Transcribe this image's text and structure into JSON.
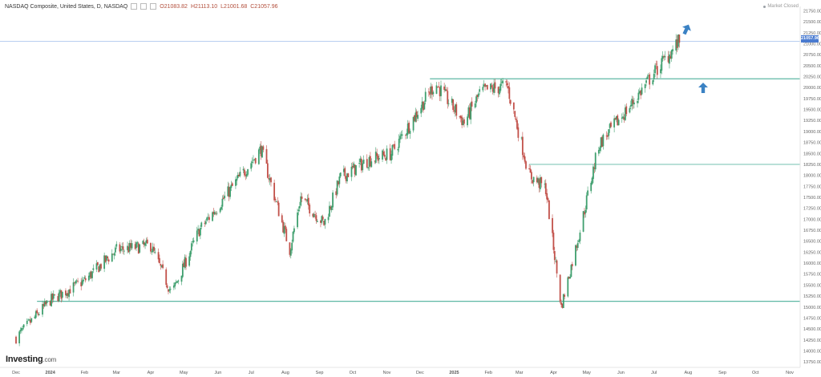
{
  "header": {
    "instrument": "NASDAQ Composite, United States, D, NASDAQ",
    "open": "O21083.82",
    "high": "H21113.10",
    "low": "L21001.68",
    "close": "C21057.96"
  },
  "status": "Market Closed",
  "logo": {
    "name": "Investing",
    "suffix": ".com"
  },
  "last_price_label": "21057.96",
  "colors": {
    "up": "#3f9f6e",
    "down": "#c2514a",
    "level_line": "#5fb8a5",
    "price_line": "#8fb0e8",
    "arrow": "#3b82c4"
  },
  "chart_data": {
    "type": "candlestick",
    "x_ticks": [
      "Dec",
      "2024",
      "Feb",
      "Mar",
      "Apr",
      "May",
      "Jun",
      "Jul",
      "Aug",
      "Sep",
      "Oct",
      "Nov",
      "Dec",
      "2025",
      "Feb",
      "Mar",
      "Apr",
      "May",
      "Jun",
      "Jul",
      "Aug",
      "Sep",
      "Oct",
      "Nov"
    ],
    "y_ticks": [
      21750,
      21500,
      21250,
      21000,
      20750,
      20500,
      20250,
      20000,
      19750,
      19500,
      19250,
      19000,
      18750,
      18500,
      18250,
      18000,
      17750,
      17500,
      17250,
      17000,
      16750,
      16500,
      16250,
      16000,
      15750,
      15500,
      15250,
      15000,
      14750,
      14500,
      14250,
      14000,
      13750
    ],
    "ylim": [
      13625,
      21850
    ],
    "horizontal_levels": [
      20200,
      18250,
      15130
    ],
    "last_price": 21057.96,
    "path_monthly": [
      {
        "date": "2023-12-01",
        "close": 14300
      },
      {
        "date": "2024-01-01",
        "close": 15150
      },
      {
        "date": "2024-02-01",
        "close": 15600
      },
      {
        "date": "2024-03-01",
        "close": 16300
      },
      {
        "date": "2024-04-01",
        "close": 16400
      },
      {
        "date": "2024-04-20",
        "close": 15300
      },
      {
        "date": "2024-05-15",
        "close": 16750
      },
      {
        "date": "2024-06-01",
        "close": 17300
      },
      {
        "date": "2024-07-10",
        "close": 18600
      },
      {
        "date": "2024-08-05",
        "close": 16300
      },
      {
        "date": "2024-08-15",
        "close": 17500
      },
      {
        "date": "2024-09-05",
        "close": 16900
      },
      {
        "date": "2024-09-20",
        "close": 17950
      },
      {
        "date": "2024-10-15",
        "close": 18350
      },
      {
        "date": "2024-11-05",
        "close": 18500
      },
      {
        "date": "2024-12-15",
        "close": 20100
      },
      {
        "date": "2025-01-10",
        "close": 19200
      },
      {
        "date": "2025-01-25",
        "close": 19900
      },
      {
        "date": "2025-02-18",
        "close": 20050
      },
      {
        "date": "2025-03-10",
        "close": 18000
      },
      {
        "date": "2025-03-25",
        "close": 17700
      },
      {
        "date": "2025-04-08",
        "close": 15000
      },
      {
        "date": "2025-04-25",
        "close": 16750
      },
      {
        "date": "2025-05-12",
        "close": 18700
      },
      {
        "date": "2025-06-10",
        "close": 19600
      },
      {
        "date": "2025-06-30",
        "close": 20300
      },
      {
        "date": "2025-07-24",
        "close": 21057.96
      }
    ]
  }
}
